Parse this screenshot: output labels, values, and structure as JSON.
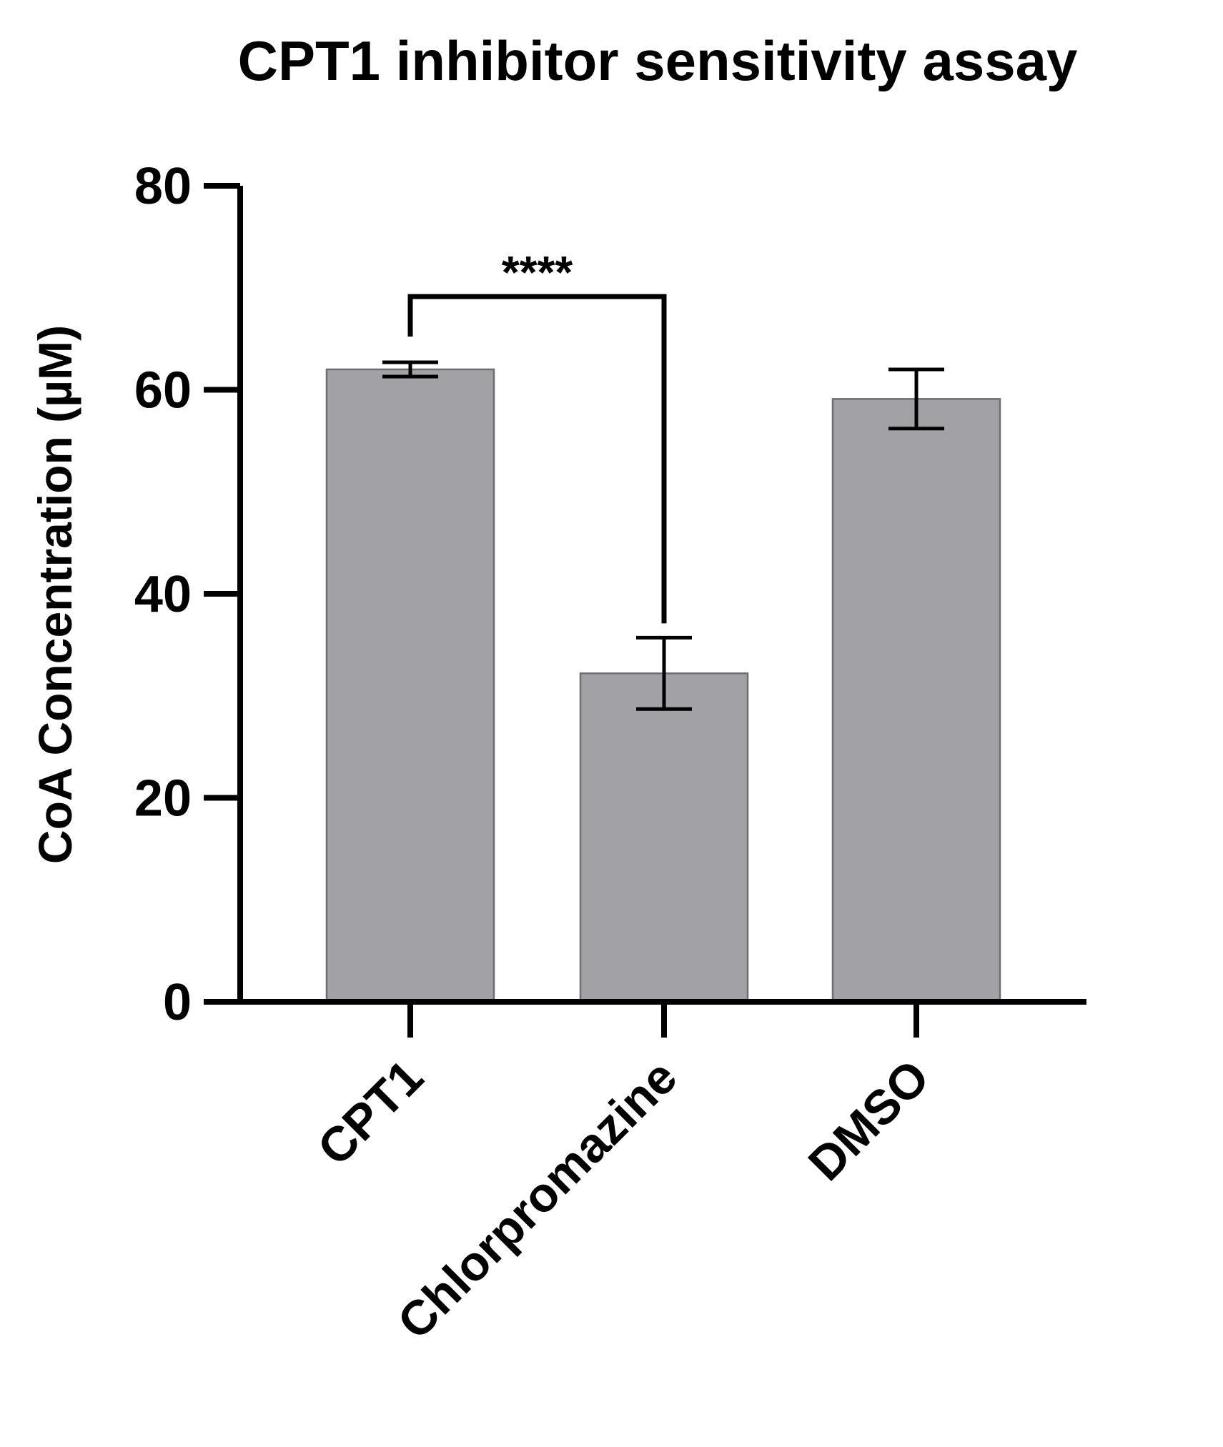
{
  "chart_data": {
    "type": "bar",
    "title": "CPT1 inhibitor sensitivity assay",
    "xlabel": "",
    "ylabel": "CoA Concentration (µM)",
    "ylim": [
      0,
      80
    ],
    "y_ticks": [
      0,
      20,
      40,
      60,
      80
    ],
    "y_tick_labels": [
      "0",
      "20",
      "40",
      "60",
      "80"
    ],
    "grid": false,
    "categories": [
      "CPT1",
      "Chlorpromazine",
      "DMSO"
    ],
    "values": [
      62.0,
      32.2,
      59.1
    ],
    "errors": [
      0.7,
      3.5,
      2.9
    ],
    "bar_color": "#a2a1a6",
    "bar_edge_color": "#6e6e72",
    "significance": [
      {
        "from": "CPT1",
        "to": "Chlorpromazine",
        "label": "****"
      }
    ]
  }
}
